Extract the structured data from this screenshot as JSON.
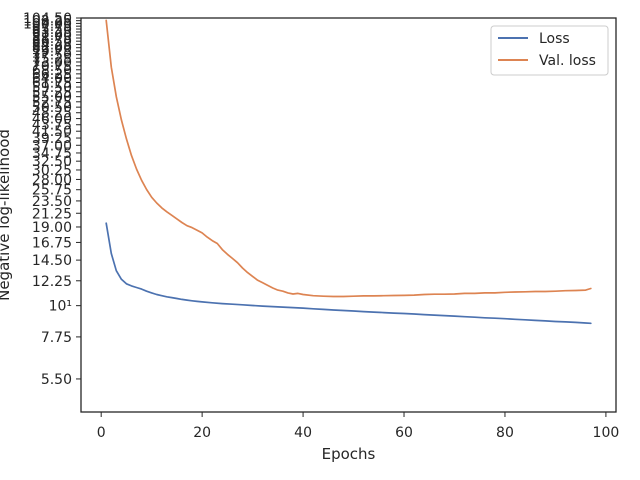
{
  "chart_data": {
    "type": "line",
    "title": "",
    "xlabel": "Epochs",
    "ylabel": "Negative log-likelihood",
    "yscale": "log",
    "xlim": [
      -4,
      102
    ],
    "ylim": [
      4.2,
      104.5
    ],
    "x_ticks": [
      0,
      20,
      40,
      60,
      80,
      100
    ],
    "y_ticks": [
      {
        "value": 5.5,
        "label": "5.50"
      },
      {
        "value": 7.75,
        "label": "7.75"
      },
      {
        "value": 10,
        "label": "10¹"
      },
      {
        "value": 12.25,
        "label": "12.25"
      },
      {
        "value": 14.5,
        "label": "14.50"
      },
      {
        "value": 16.75,
        "label": "16.75"
      },
      {
        "value": 19,
        "label": "19.00"
      },
      {
        "value": 21.25,
        "label": "21.25"
      },
      {
        "value": 23.5,
        "label": "23.50"
      },
      {
        "value": 25.75,
        "label": "25.75"
      },
      {
        "value": 28,
        "label": "28.00"
      },
      {
        "value": 30.25,
        "label": "30.25"
      },
      {
        "value": 32.5,
        "label": "32.50"
      },
      {
        "value": 34.75,
        "label": "34.75"
      },
      {
        "value": 37,
        "label": "37.00"
      },
      {
        "value": 39.25,
        "label": "39.25"
      },
      {
        "value": 41.5,
        "label": "41.50"
      },
      {
        "value": 43.75,
        "label": "43.75"
      },
      {
        "value": 46,
        "label": "46.00"
      },
      {
        "value": 48.25,
        "label": "48.25"
      },
      {
        "value": 50.5,
        "label": "50.50"
      },
      {
        "value": 52.75,
        "label": "52.75"
      },
      {
        "value": 55,
        "label": "55.00"
      },
      {
        "value": 57.25,
        "label": "57.25"
      },
      {
        "value": 59.5,
        "label": "59.50"
      },
      {
        "value": 61.75,
        "label": "61.75"
      },
      {
        "value": 64,
        "label": "64.00"
      },
      {
        "value": 66.25,
        "label": "66.25"
      },
      {
        "value": 68.5,
        "label": "68.50"
      },
      {
        "value": 70.75,
        "label": "70.75"
      },
      {
        "value": 73,
        "label": "73.00"
      },
      {
        "value": 75.25,
        "label": "75.25"
      },
      {
        "value": 77.5,
        "label": "77.50"
      },
      {
        "value": 79.75,
        "label": "79.75"
      },
      {
        "value": 82,
        "label": "82.00"
      },
      {
        "value": 84.25,
        "label": "84.25"
      },
      {
        "value": 86.5,
        "label": "86.50"
      },
      {
        "value": 88.75,
        "label": "88.75"
      },
      {
        "value": 91,
        "label": "91.00"
      },
      {
        "value": 93.25,
        "label": "93.25"
      },
      {
        "value": 95.5,
        "label": "95.50"
      },
      {
        "value": 97.75,
        "label": "97.75"
      },
      {
        "value": 100,
        "label": "100.00"
      },
      {
        "value": 102.25,
        "label": "102.25"
      },
      {
        "value": 104.5,
        "label": "104.50"
      }
    ],
    "grid": false,
    "legend_position": "top-right",
    "series": [
      {
        "name": "Loss",
        "color": "#4c72b0",
        "x": [
          1,
          2,
          3,
          4,
          5,
          6,
          7,
          8,
          9,
          10,
          11,
          12,
          13,
          14,
          15,
          16,
          17,
          18,
          19,
          20,
          22,
          24,
          26,
          28,
          30,
          32,
          34,
          36,
          38,
          40,
          42,
          44,
          46,
          48,
          50,
          52,
          54,
          56,
          58,
          60,
          62,
          64,
          66,
          68,
          70,
          72,
          74,
          76,
          78,
          80,
          82,
          84,
          86,
          88,
          90,
          92,
          94,
          96,
          97
        ],
        "values": [
          19.6,
          15.3,
          13.3,
          12.4,
          11.95,
          11.75,
          11.6,
          11.45,
          11.25,
          11.1,
          10.95,
          10.85,
          10.75,
          10.68,
          10.6,
          10.52,
          10.46,
          10.4,
          10.35,
          10.31,
          10.24,
          10.17,
          10.12,
          10.07,
          10.01,
          9.96,
          9.92,
          9.88,
          9.84,
          9.8,
          9.75,
          9.7,
          9.65,
          9.61,
          9.57,
          9.53,
          9.49,
          9.45,
          9.41,
          9.38,
          9.34,
          9.3,
          9.26,
          9.22,
          9.18,
          9.14,
          9.1,
          9.06,
          9.03,
          8.99,
          8.95,
          8.91,
          8.87,
          8.83,
          8.79,
          8.76,
          8.72,
          8.68,
          8.66
        ]
      },
      {
        "name": "Val. loss",
        "color": "#dd8452",
        "x": [
          1,
          2,
          3,
          4,
          5,
          6,
          7,
          8,
          9,
          10,
          11,
          12,
          13,
          14,
          15,
          16,
          17,
          18,
          19,
          20,
          21,
          22,
          23,
          24,
          25,
          26,
          27,
          28,
          29,
          30,
          31,
          32,
          33,
          34,
          35,
          36,
          37,
          38,
          39,
          40,
          42,
          44,
          46,
          48,
          50,
          52,
          54,
          56,
          58,
          60,
          62,
          64,
          66,
          68,
          70,
          72,
          74,
          76,
          78,
          80,
          82,
          84,
          86,
          88,
          90,
          92,
          94,
          96,
          97
        ],
        "values": [
          102.5,
          70,
          55,
          45.5,
          39,
          34,
          30.5,
          27.8,
          25.8,
          24.2,
          23.1,
          22.2,
          21.5,
          20.9,
          20.3,
          19.7,
          19.2,
          18.9,
          18.5,
          18.1,
          17.5,
          17,
          16.6,
          15.8,
          15.2,
          14.7,
          14.2,
          13.6,
          13.1,
          12.7,
          12.3,
          12.05,
          11.8,
          11.55,
          11.35,
          11.25,
          11.1,
          11.0,
          11.05,
          10.95,
          10.85,
          10.8,
          10.78,
          10.78,
          10.8,
          10.83,
          10.83,
          10.85,
          10.86,
          10.87,
          10.9,
          10.95,
          10.98,
          10.98,
          11.0,
          11.05,
          11.05,
          11.1,
          11.1,
          11.15,
          11.18,
          11.2,
          11.22,
          11.22,
          11.25,
          11.3,
          11.32,
          11.35,
          11.5
        ]
      }
    ]
  }
}
